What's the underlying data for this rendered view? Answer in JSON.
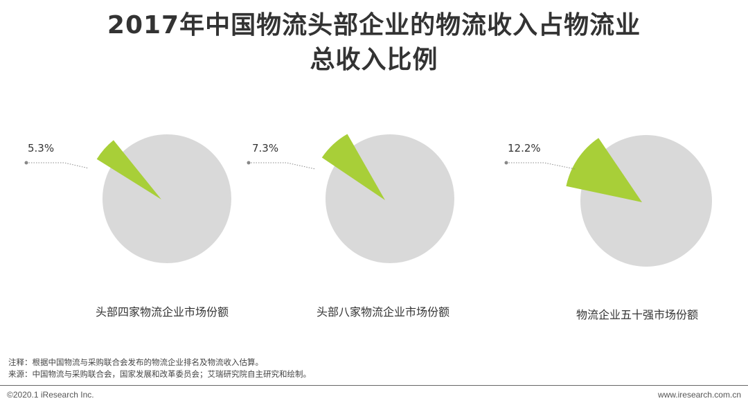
{
  "title_line1": "2017年中国物流头部企业的物流收入占物流业",
  "title_line2": "总收入比例",
  "colors": {
    "highlight": "#a8cf38",
    "rest": "#d9d9d9",
    "leader": "#888888"
  },
  "chart_data": [
    {
      "type": "pie",
      "label": "头部四家物流企业市场份额",
      "highlight_value": 5.3,
      "highlight_label": "5.3%"
    },
    {
      "type": "pie",
      "label": "头部八家物流企业市场份额",
      "highlight_value": 7.3,
      "highlight_label": "7.3%"
    },
    {
      "type": "pie",
      "label": "物流企业五十强市场份额",
      "highlight_value": 12.2,
      "highlight_label": "12.2%"
    }
  ],
  "notes": {
    "note": "注释：根据中国物流与采购联合会发布的物流企业排名及物流收入估算。",
    "source": "来源：中国物流与采购联合会，国家发展和改革委员会；艾瑞研究院自主研究和绘制。"
  },
  "footer": {
    "copyright": "©2020.1 iResearch Inc.",
    "website": "www.iresearch.com.cn"
  }
}
